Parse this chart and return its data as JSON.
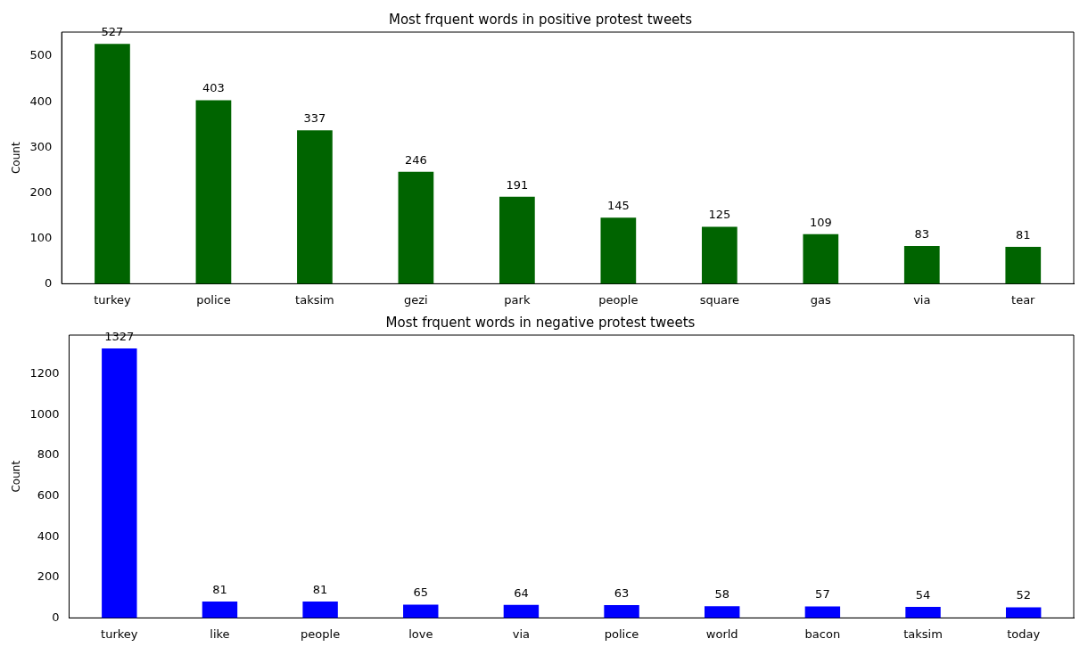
{
  "chart_data": [
    {
      "type": "bar",
      "title": "Most frquent words in positive protest tweets",
      "ylabel": "Count",
      "categories": [
        "turkey",
        "police",
        "taksim",
        "gezi",
        "park",
        "people",
        "square",
        "gas",
        "via",
        "tear"
      ],
      "values": [
        527,
        403,
        337,
        246,
        191,
        145,
        125,
        109,
        83,
        81
      ],
      "color": "#006400",
      "ylim": [
        0,
        553
      ],
      "yticks": [
        0,
        100,
        200,
        300,
        400,
        500
      ],
      "data_labels": true,
      "grid": false,
      "legend": false
    },
    {
      "type": "bar",
      "title": "Most frquent words in negative protest tweets",
      "ylabel": "Count",
      "categories": [
        "turkey",
        "like",
        "people",
        "love",
        "via",
        "police",
        "world",
        "bacon",
        "taksim",
        "today"
      ],
      "values": [
        1327,
        81,
        81,
        65,
        64,
        63,
        58,
        57,
        54,
        52
      ],
      "color": "#0000ff",
      "ylim": [
        0,
        1393
      ],
      "yticks": [
        0,
        200,
        400,
        600,
        800,
        1000,
        1200
      ],
      "data_labels": true,
      "grid": false,
      "legend": false
    }
  ]
}
